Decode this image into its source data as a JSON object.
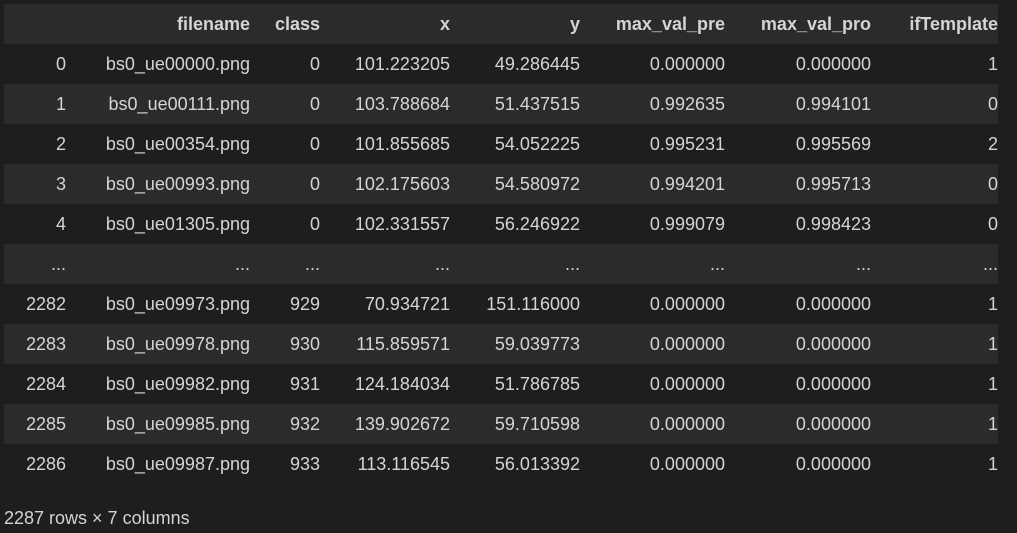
{
  "table": {
    "columns": [
      "",
      "filename",
      "class",
      "x",
      "y",
      "max_val_pre",
      "max_val_pro",
      "ifTemplate"
    ],
    "rows": [
      [
        "0",
        "bs0_ue00000.png",
        "0",
        "101.223205",
        "49.286445",
        "0.000000",
        "0.000000",
        "1"
      ],
      [
        "1",
        "bs0_ue00111.png",
        "0",
        "103.788684",
        "51.437515",
        "0.992635",
        "0.994101",
        "0"
      ],
      [
        "2",
        "bs0_ue00354.png",
        "0",
        "101.855685",
        "54.052225",
        "0.995231",
        "0.995569",
        "2"
      ],
      [
        "3",
        "bs0_ue00993.png",
        "0",
        "102.175603",
        "54.580972",
        "0.994201",
        "0.995713",
        "0"
      ],
      [
        "4",
        "bs0_ue01305.png",
        "0",
        "102.331557",
        "56.246922",
        "0.999079",
        "0.998423",
        "0"
      ],
      [
        "...",
        "...",
        "...",
        "...",
        "...",
        "...",
        "...",
        "..."
      ],
      [
        "2282",
        "bs0_ue09973.png",
        "929",
        "70.934721",
        "151.116000",
        "0.000000",
        "0.000000",
        "1"
      ],
      [
        "2283",
        "bs0_ue09978.png",
        "930",
        "115.859571",
        "59.039773",
        "0.000000",
        "0.000000",
        "1"
      ],
      [
        "2284",
        "bs0_ue09982.png",
        "931",
        "124.184034",
        "51.786785",
        "0.000000",
        "0.000000",
        "1"
      ],
      [
        "2285",
        "bs0_ue09985.png",
        "932",
        "139.902672",
        "59.710598",
        "0.000000",
        "0.000000",
        "1"
      ],
      [
        "2286",
        "bs0_ue09987.png",
        "933",
        "113.116545",
        "56.013392",
        "0.000000",
        "0.000000",
        "1"
      ]
    ]
  },
  "summary": "2287 rows × 7 columns"
}
